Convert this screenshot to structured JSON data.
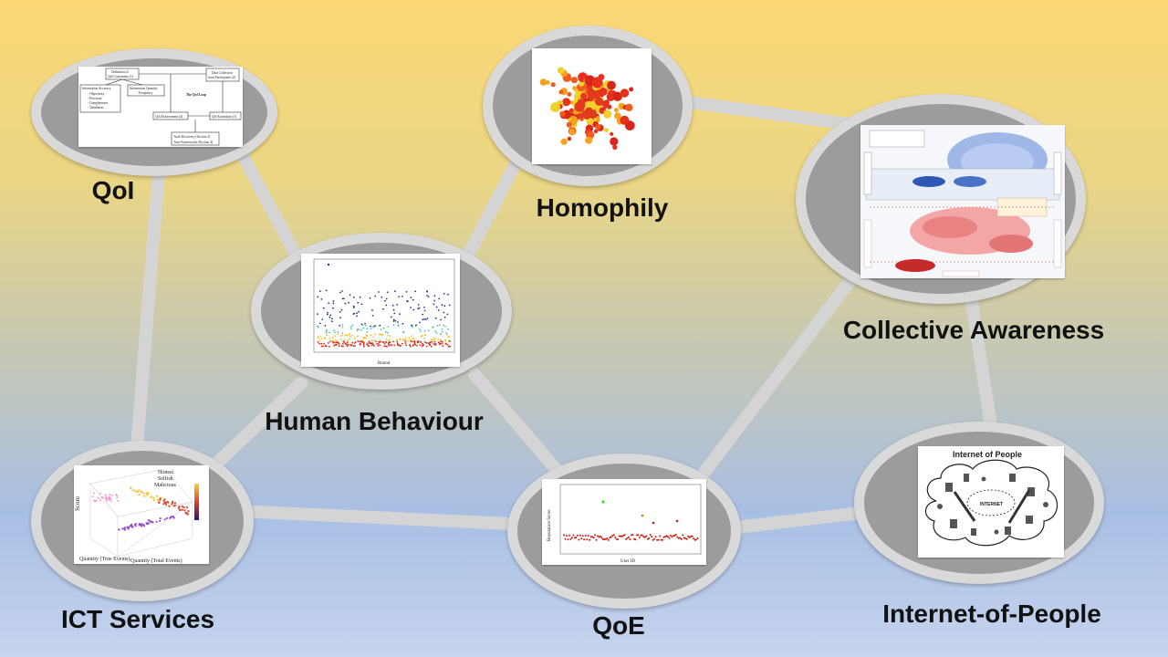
{
  "nodes": {
    "qoi": {
      "label": "QoI"
    },
    "homophily": {
      "label": "Homophily"
    },
    "collective": {
      "label": "Collective Awareness"
    },
    "human": {
      "label": "Human Behaviour"
    },
    "ict": {
      "label": "ICT Services"
    },
    "qoe": {
      "label": "QoE"
    },
    "iop": {
      "label": "Internet-of-People"
    }
  },
  "thumbnails": {
    "qoi_loop": {
      "boxes": [
        "Definition of",
        "QoI Constraints (1)",
        "Information Accuracy",
        "- Objectivity",
        "- Precision",
        "- Completeness",
        "- Timeliness",
        "Information Quantity",
        "- Frequency",
        "The QoI Loop",
        "Data Collection",
        "from Participants (2)",
        "QoI Enforcement (4)",
        "QoI Estimation (3)",
        "Truth Discovery (Section 3)",
        "Trust Frameworks (Section 4)"
      ]
    },
    "iop_cloud": {
      "title": "Internet of People",
      "center": "INTERNET"
    },
    "ict_plot": {
      "legend": [
        "Honest",
        "Selfish",
        "Malicious"
      ],
      "zlabel": "Score",
      "xlabel": "Quantity (True Events)",
      "ylabel": "Quantity (Total Events)"
    },
    "qoe_plot": {
      "xlabel": "User ID",
      "ylabel": "Reputation Score"
    },
    "human_plot": {
      "xlabel": "Round"
    }
  },
  "colors": {
    "edge": "#d4d4d4",
    "node_fill": "#9c9c9c",
    "node_border": "#d9d9d9"
  }
}
